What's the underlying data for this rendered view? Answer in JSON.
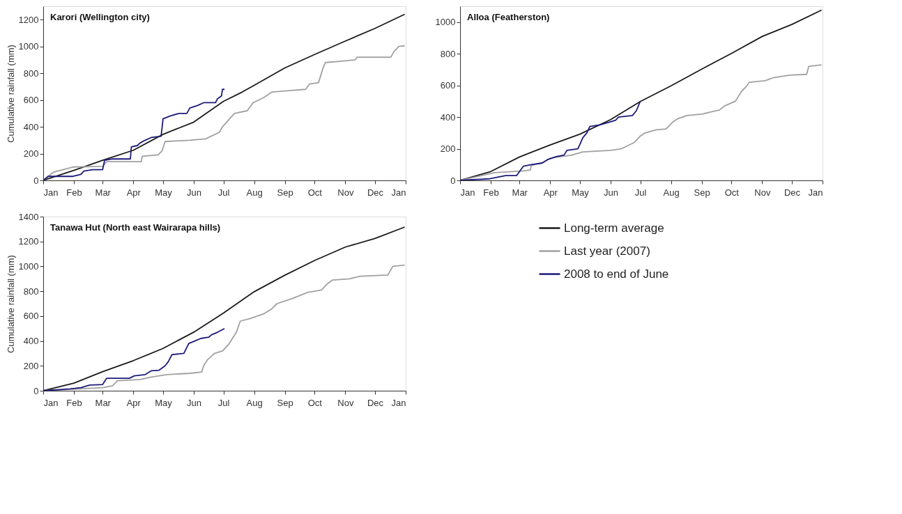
{
  "chart_data": [
    {
      "type": "line",
      "title": "Karori (Wellington city)",
      "ylabel": "Cumulative rainfall (mm)",
      "xlim": [
        "2008-01-01",
        "2009-01-01"
      ],
      "ylim": [
        0,
        1300
      ],
      "yticks": [
        0,
        200,
        400,
        600,
        800,
        1000,
        1200
      ],
      "grid": false,
      "legend": false,
      "xticks": [
        {
          "value": "2008-01-01",
          "label": "Jan"
        },
        {
          "value": "2008-02-01",
          "label": "Feb"
        },
        {
          "value": "2008-03-01",
          "label": "Mar"
        },
        {
          "value": "2008-04-01",
          "label": "Apr"
        },
        {
          "value": "2008-05-01",
          "label": "May"
        },
        {
          "value": "2008-06-01",
          "label": "Jun"
        },
        {
          "value": "2008-07-01",
          "label": "Jul"
        },
        {
          "value": "2008-08-01",
          "label": "Aug"
        },
        {
          "value": "2008-09-01",
          "label": "Sep"
        },
        {
          "value": "2008-10-01",
          "label": "Oct"
        },
        {
          "value": "2008-11-01",
          "label": "Nov"
        },
        {
          "value": "2008-12-01",
          "label": "Dec"
        },
        {
          "value": "2009-01-01",
          "label": "Jan"
        }
      ],
      "series": [
        {
          "color": "#1a1a1a",
          "x": [
            "2008-01-01",
            "2008-02-01",
            "2008-03-01",
            "2008-04-01",
            "2008-05-01",
            "2008-06-01",
            "2008-07-01",
            "2008-07-20",
            "2008-08-01",
            "2008-09-01",
            "2008-10-01",
            "2008-11-01",
            "2008-12-01",
            "2008-12-31"
          ],
          "values": [
            0,
            75,
            150,
            225,
            344,
            435,
            590,
            660,
            710,
            840,
            940,
            1040,
            1135,
            1240
          ]
        },
        {
          "color": "#a0a0a0",
          "x": [
            "2008-01-01",
            "2008-01-11",
            "2008-01-31",
            "2008-03-01",
            "2008-03-05",
            "2008-04-09",
            "2008-04-10",
            "2008-04-26",
            "2008-04-30",
            "2008-05-03",
            "2008-05-28",
            "2008-06-13",
            "2008-06-27",
            "2008-06-30",
            "2008-07-12",
            "2008-07-25",
            "2008-07-31",
            "2008-08-11",
            "2008-08-19",
            "2008-09-05",
            "2008-09-22",
            "2008-09-26",
            "2008-10-05",
            "2008-10-10",
            "2008-10-12",
            "2008-10-28",
            "2008-11-11",
            "2008-11-13",
            "2008-12-17",
            "2008-12-20",
            "2008-12-25",
            "2008-12-31"
          ],
          "values": [
            0,
            60,
            100,
            105,
            140,
            140,
            180,
            190,
            220,
            290,
            300,
            310,
            360,
            400,
            500,
            520,
            580,
            620,
            660,
            670,
            680,
            720,
            730,
            850,
            880,
            890,
            900,
            920,
            920,
            960,
            1000,
            1005
          ]
        },
        {
          "color": "#1c1a7a",
          "x": [
            "2008-01-01",
            "2008-01-06",
            "2008-01-31",
            "2008-02-08",
            "2008-02-11",
            "2008-02-20",
            "2008-03-01",
            "2008-03-03",
            "2008-03-11",
            "2008-03-29",
            "2008-03-30",
            "2008-04-05",
            "2008-04-08",
            "2008-04-13",
            "2008-04-19",
            "2008-04-29",
            "2008-05-01",
            "2008-05-08",
            "2008-05-17",
            "2008-05-25",
            "2008-05-28",
            "2008-06-05",
            "2008-06-11",
            "2008-06-23",
            "2008-06-25",
            "2008-06-29",
            "2008-06-30",
            "2008-07-02"
          ],
          "values": [
            0,
            30,
            30,
            45,
            70,
            80,
            80,
            150,
            160,
            160,
            250,
            260,
            280,
            300,
            320,
            330,
            460,
            480,
            500,
            500,
            540,
            560,
            580,
            580,
            610,
            630,
            680,
            680
          ]
        }
      ]
    },
    {
      "type": "line",
      "title": "Alloa (Featherston)",
      "xlim": [
        "2008-01-01",
        "2009-01-01"
      ],
      "ylim": [
        0,
        1100
      ],
      "yticks": [
        0,
        200,
        400,
        600,
        800,
        1000
      ],
      "grid": false,
      "legend": false,
      "xticks": [
        {
          "value": "2008-01-01",
          "label": "Jan"
        },
        {
          "value": "2008-02-01",
          "label": "Feb"
        },
        {
          "value": "2008-03-01",
          "label": "Mar"
        },
        {
          "value": "2008-04-01",
          "label": "Apr"
        },
        {
          "value": "2008-05-01",
          "label": "May"
        },
        {
          "value": "2008-06-01",
          "label": "Jun"
        },
        {
          "value": "2008-07-01",
          "label": "Jul"
        },
        {
          "value": "2008-08-01",
          "label": "Aug"
        },
        {
          "value": "2008-09-01",
          "label": "Sep"
        },
        {
          "value": "2008-10-01",
          "label": "Oct"
        },
        {
          "value": "2008-11-01",
          "label": "Nov"
        },
        {
          "value": "2008-12-01",
          "label": "Dec"
        },
        {
          "value": "2009-01-01",
          "label": "Jan"
        }
      ],
      "series": [
        {
          "color": "#1a1a1a",
          "x": [
            "2008-01-01",
            "2008-02-01",
            "2008-03-01",
            "2008-04-01",
            "2008-05-01",
            "2008-06-01",
            "2008-07-01",
            "2008-08-01",
            "2008-09-01",
            "2008-10-01",
            "2008-11-01",
            "2008-12-01",
            "2008-12-31"
          ],
          "values": [
            0,
            56,
            148,
            224,
            292,
            384,
            498,
            597,
            703,
            802,
            909,
            985,
            1076
          ]
        },
        {
          "color": "#a0a0a0",
          "x": [
            "2008-01-01",
            "2008-02-05",
            "2008-03-05",
            "2008-03-12",
            "2008-03-13",
            "2008-03-24",
            "2008-04-01",
            "2008-04-12",
            "2008-04-23",
            "2008-05-04",
            "2008-06-01",
            "2008-06-12",
            "2008-06-25",
            "2008-07-01",
            "2008-07-06",
            "2008-07-17",
            "2008-07-27",
            "2008-08-03",
            "2008-08-08",
            "2008-08-17",
            "2008-09-02",
            "2008-09-19",
            "2008-09-24",
            "2008-10-05",
            "2008-10-11",
            "2008-10-17",
            "2008-10-19",
            "2008-11-04",
            "2008-11-13",
            "2008-11-29",
            "2008-12-16",
            "2008-12-18",
            "2008-12-31"
          ],
          "values": [
            0,
            49,
            60,
            65,
            95,
            110,
            140,
            150,
            160,
            180,
            190,
            200,
            240,
            280,
            300,
            320,
            325,
            370,
            390,
            410,
            420,
            445,
            470,
            500,
            560,
            600,
            620,
            630,
            650,
            665,
            670,
            720,
            730
          ]
        },
        {
          "color": "#1c1a7a",
          "x": [
            "2008-01-01",
            "2008-01-31",
            "2008-02-08",
            "2008-02-16",
            "2008-02-27",
            "2008-03-05",
            "2008-03-13",
            "2008-03-24",
            "2008-03-29",
            "2008-04-07",
            "2008-04-15",
            "2008-04-18",
            "2008-04-29",
            "2008-05-04",
            "2008-05-08",
            "2008-05-11",
            "2008-05-21",
            "2008-06-01",
            "2008-06-06",
            "2008-06-09",
            "2008-06-23",
            "2008-06-27",
            "2008-07-01"
          ],
          "values": [
            0,
            10,
            20,
            30,
            30,
            90,
            100,
            110,
            130,
            150,
            160,
            190,
            200,
            270,
            300,
            340,
            350,
            370,
            380,
            400,
            410,
            440,
            500
          ]
        }
      ]
    },
    {
      "type": "line",
      "title": "Tanawa Hut (North east Wairarapa hills)",
      "ylabel": "Cumulative rainfall (mm)",
      "xlim": [
        "2008-01-01",
        "2009-01-01"
      ],
      "ylim": [
        0,
        1400
      ],
      "yticks": [
        0,
        200,
        400,
        600,
        800,
        1000,
        1200,
        1400
      ],
      "grid": false,
      "legend": "right",
      "xticks": [
        {
          "value": "2008-01-01",
          "label": "Jan"
        },
        {
          "value": "2008-02-01",
          "label": "Feb"
        },
        {
          "value": "2008-03-01",
          "label": "Mar"
        },
        {
          "value": "2008-04-01",
          "label": "Apr"
        },
        {
          "value": "2008-05-01",
          "label": "May"
        },
        {
          "value": "2008-06-01",
          "label": "Jun"
        },
        {
          "value": "2008-07-01",
          "label": "Jul"
        },
        {
          "value": "2008-08-01",
          "label": "Aug"
        },
        {
          "value": "2008-09-01",
          "label": "Sep"
        },
        {
          "value": "2008-10-01",
          "label": "Oct"
        },
        {
          "value": "2008-11-01",
          "label": "Nov"
        },
        {
          "value": "2008-12-01",
          "label": "Dec"
        },
        {
          "value": "2009-01-01",
          "label": "Jan"
        }
      ],
      "series": [
        {
          "name": "Long-term average",
          "color": "#1a1a1a",
          "x": [
            "2008-01-01",
            "2008-02-01",
            "2008-03-01",
            "2008-04-01",
            "2008-05-01",
            "2008-06-01",
            "2008-07-01",
            "2008-08-01",
            "2008-09-01",
            "2008-10-01",
            "2008-11-01",
            "2008-12-01",
            "2008-12-31"
          ],
          "values": [
            0,
            61,
            153,
            242,
            340,
            471,
            625,
            796,
            929,
            1047,
            1155,
            1224,
            1316
          ]
        },
        {
          "name": "Last year (2007)",
          "color": "#a0a0a0",
          "x": [
            "2008-01-01",
            "2008-03-01",
            "2008-03-11",
            "2008-03-16",
            "2008-04-08",
            "2008-04-19",
            "2008-05-05",
            "2008-05-28",
            "2008-06-09",
            "2008-06-11",
            "2008-06-15",
            "2008-06-22",
            "2008-06-30",
            "2008-07-06",
            "2008-07-10",
            "2008-07-14",
            "2008-07-18",
            "2008-07-28",
            "2008-08-11",
            "2008-08-19",
            "2008-08-24",
            "2008-09-08",
            "2008-09-24",
            "2008-10-08",
            "2008-10-14",
            "2008-10-19",
            "2008-11-05",
            "2008-11-16",
            "2008-12-14",
            "2008-12-19",
            "2008-12-31"
          ],
          "values": [
            0,
            25,
            40,
            80,
            90,
            110,
            130,
            140,
            150,
            200,
            250,
            300,
            320,
            370,
            420,
            470,
            560,
            580,
            620,
            660,
            700,
            740,
            790,
            810,
            860,
            890,
            900,
            920,
            930,
            1000,
            1010
          ]
        },
        {
          "name": "2008 to end of June",
          "color": "#1c1a7a",
          "x": [
            "2008-01-01",
            "2008-01-28",
            "2008-02-08",
            "2008-02-17",
            "2008-03-01",
            "2008-03-05",
            "2008-03-28",
            "2008-04-02",
            "2008-04-13",
            "2008-04-19",
            "2008-04-27",
            "2008-05-03",
            "2008-05-06",
            "2008-05-10",
            "2008-05-22",
            "2008-05-27",
            "2008-06-02",
            "2008-06-08",
            "2008-06-16",
            "2008-06-19",
            "2008-06-25",
            "2008-07-02"
          ],
          "values": [
            0,
            15,
            25,
            45,
            50,
            100,
            100,
            120,
            130,
            160,
            165,
            200,
            230,
            290,
            300,
            380,
            400,
            420,
            430,
            450,
            470,
            500
          ]
        }
      ]
    }
  ]
}
